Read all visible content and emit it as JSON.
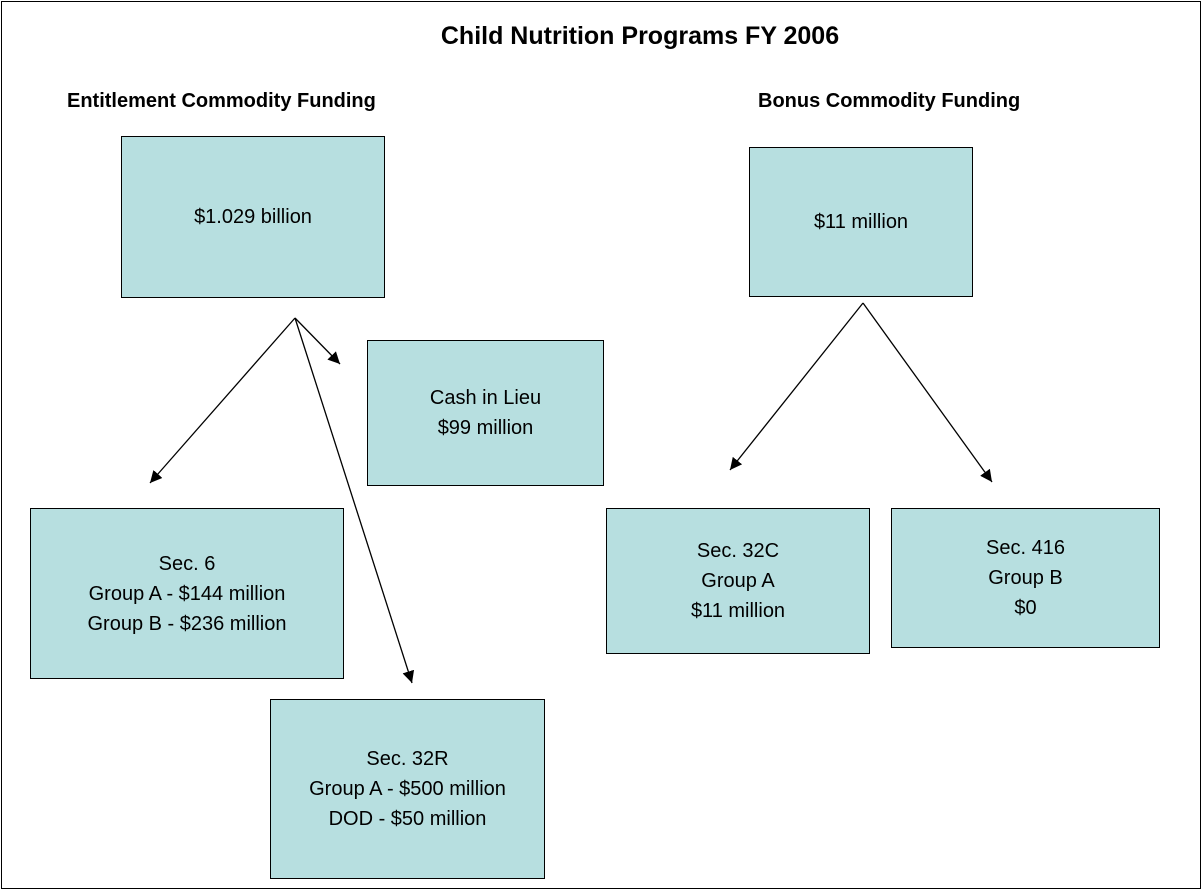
{
  "title": "Child Nutrition Programs FY 2006",
  "headings": [
    "Entitlement Commodity Funding",
    "Bonus Commodity Funding"
  ],
  "nodes": [
    {
      "lines": [
        "$1.029 billion"
      ]
    },
    {
      "lines": [
        "$11 million"
      ]
    },
    {
      "lines": [
        "Cash in Lieu",
        "$99 million"
      ]
    },
    {
      "lines": [
        "Sec. 6",
        "Group A - $144 million",
        "Group B - $236 million"
      ]
    },
    {
      "lines": [
        "Sec. 32R",
        "Group A - $500 million",
        "DOD - $50 million"
      ]
    },
    {
      "lines": [
        "Sec. 32C",
        "Group A",
        "$11 million"
      ]
    },
    {
      "lines": [
        "Sec. 416",
        "Group B",
        "$0"
      ]
    }
  ]
}
